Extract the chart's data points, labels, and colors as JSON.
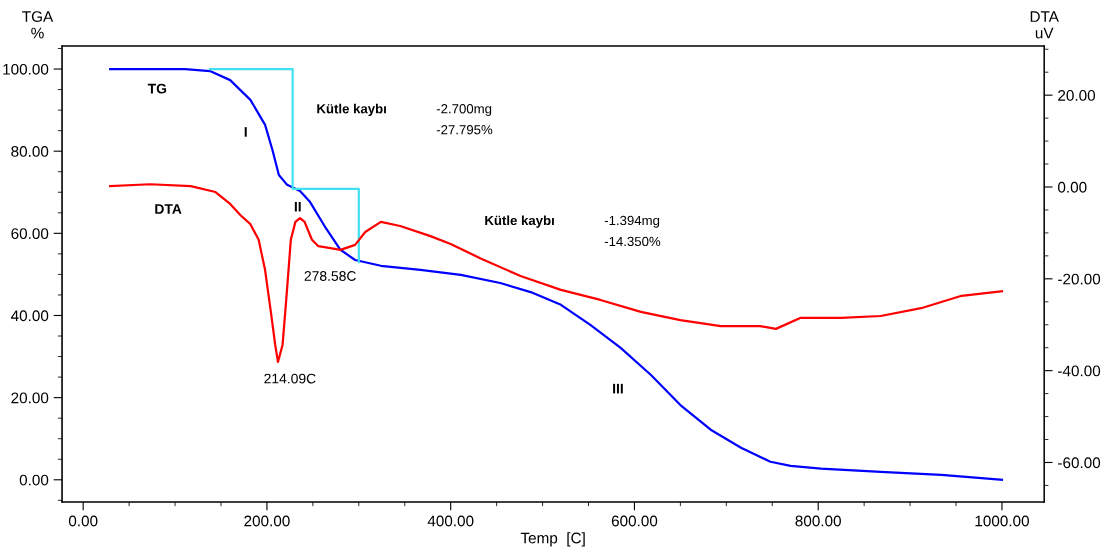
{
  "chart_data": {
    "type": "line",
    "xlabel": "Temp  [C]",
    "ylabel": "TGA\n%",
    "y2label": "DTA\nuV",
    "xlim": [
      -23,
      1046
    ],
    "ylim": [
      -5.4,
      105.6
    ],
    "y2lim": [
      -68.6,
      30.7
    ],
    "xticks": [
      {
        "value": 0,
        "label": "0.00"
      },
      {
        "value": 200,
        "label": "200.00"
      },
      {
        "value": 400,
        "label": "400.00"
      },
      {
        "value": 600,
        "label": "600.00"
      },
      {
        "value": 800,
        "label": "800.00"
      },
      {
        "value": 1000,
        "label": "1000.00"
      }
    ],
    "yticks": [
      {
        "value": 0,
        "label": "0.00"
      },
      {
        "value": 20,
        "label": "20.00"
      },
      {
        "value": 40,
        "label": "40.00"
      },
      {
        "value": 60,
        "label": "60.00"
      },
      {
        "value": 80,
        "label": "80.00"
      },
      {
        "value": 100,
        "label": "100.00"
      }
    ],
    "y2ticks": [
      {
        "value": -60,
        "label": "-60.00"
      },
      {
        "value": -40,
        "label": "-40.00"
      },
      {
        "value": -20,
        "label": "-20.00"
      },
      {
        "value": 0,
        "label": "0.00"
      },
      {
        "value": 20,
        "label": "20.00"
      }
    ],
    "grid": false,
    "legend": false,
    "series": [
      {
        "color": "#0000ff",
        "x": [
          29.4,
          111,
          138,
          160,
          182,
          198,
          206,
          213,
          222,
          236,
          247,
          264,
          280,
          296,
          324,
          367,
          411,
          454,
          487,
          520,
          552,
          585,
          618,
          650,
          683,
          716,
          748,
          770,
          803,
          868,
          934,
          1000
        ],
        "values": [
          100,
          100,
          99.5,
          97.3,
          92.5,
          86.4,
          80.3,
          74.2,
          71.8,
          70.3,
          67.6,
          61.3,
          56.0,
          53.5,
          52.1,
          51.1,
          49.9,
          47.9,
          45.7,
          42.6,
          37.7,
          32.1,
          25.5,
          18.2,
          12.2,
          7.8,
          4.4,
          3.4,
          2.7,
          1.9,
          1.2,
          0
        ]
      },
      {
        "color": "#ff0000",
        "axis": "y2",
        "x": [
          29.4,
          73,
          117,
          144,
          160,
          171,
          182,
          191,
          198,
          204,
          209,
          212,
          217,
          221,
          226,
          231,
          236,
          241,
          249,
          256,
          269,
          280,
          296,
          307,
          324,
          345,
          378,
          400,
          432,
          476,
          520,
          563,
          607,
          650,
          694,
          737,
          754,
          781,
          825,
          868,
          912,
          956,
          1000
        ],
        "values": [
          0.2,
          0.6,
          0.2,
          -1.1,
          -3.7,
          -6.1,
          -8.1,
          -11.5,
          -18.1,
          -26.8,
          -34.4,
          -38.1,
          -34.4,
          -24.6,
          -11.5,
          -7.6,
          -6.8,
          -7.6,
          -11.5,
          -12.9,
          -13.3,
          -13.7,
          -12.6,
          -9.8,
          -7.6,
          -8.5,
          -10.7,
          -12.4,
          -15.5,
          -19.4,
          -22.4,
          -24.6,
          -27.2,
          -29.0,
          -30.3,
          -30.3,
          -30.9,
          -28.5,
          -28.5,
          -28.1,
          -26.4,
          -23.7,
          -22.7
        ]
      },
      {
        "color": "#40e0f0",
        "x": [
          138,
          228,
          228,
          300,
          300
        ],
        "values": [
          100,
          100,
          70.8,
          70.8,
          53.0
        ]
      }
    ],
    "annotations": [
      "TG",
      "DTA",
      "I",
      "II",
      "III",
      "214.09C",
      "278.58C",
      "Kütle kaybı",
      "-2.700mg",
      "-27.795%",
      "Kütle kaybı",
      "-1.394mg",
      "-14.350%"
    ]
  }
}
